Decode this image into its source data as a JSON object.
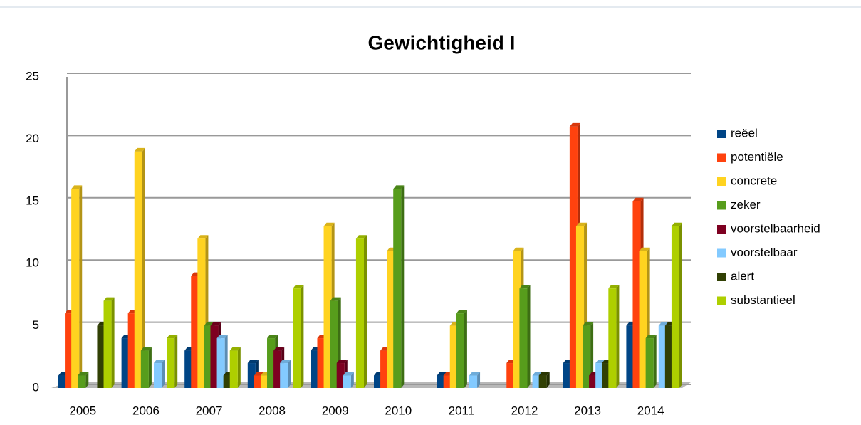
{
  "chart_data": {
    "type": "bar",
    "title": "Gewichtigheid I",
    "categories": [
      "2005",
      "2006",
      "2007",
      "2008",
      "2009",
      "2010",
      "2011",
      "2012",
      "2013",
      "2014"
    ],
    "ylim": [
      0,
      25
    ],
    "yticks": [
      0,
      5,
      10,
      15,
      20,
      25
    ],
    "grid": true,
    "legend": "right",
    "series": [
      {
        "name": "reëel",
        "color": "#004586",
        "values": [
          1,
          4,
          3,
          2,
          3,
          1,
          1,
          0,
          2,
          5
        ]
      },
      {
        "name": "potentiële",
        "color": "#ff420e",
        "values": [
          6,
          6,
          9,
          1,
          4,
          3,
          1,
          2,
          21,
          15
        ]
      },
      {
        "name": "concrete",
        "color": "#ffd320",
        "values": [
          16,
          19,
          12,
          1,
          13,
          11,
          5,
          11,
          13,
          11
        ]
      },
      {
        "name": "zeker",
        "color": "#579d1c",
        "values": [
          1,
          3,
          5,
          4,
          7,
          16,
          6,
          8,
          5,
          4
        ]
      },
      {
        "name": "voorstelbaarheid",
        "color": "#7e0021",
        "values": [
          0,
          0,
          5,
          3,
          2,
          0,
          0,
          0,
          1,
          0
        ]
      },
      {
        "name": "voorstelbaar",
        "color": "#83caff",
        "values": [
          0,
          2,
          4,
          2,
          1,
          0,
          1,
          1,
          2,
          5
        ]
      },
      {
        "name": "alert",
        "color": "#314004",
        "values": [
          5,
          0,
          1,
          0,
          0,
          0,
          0,
          1,
          2,
          5
        ]
      },
      {
        "name": "substantieel",
        "color": "#aecf00",
        "values": [
          7,
          4,
          3,
          8,
          12,
          0,
          0,
          0,
          8,
          13
        ]
      }
    ]
  }
}
